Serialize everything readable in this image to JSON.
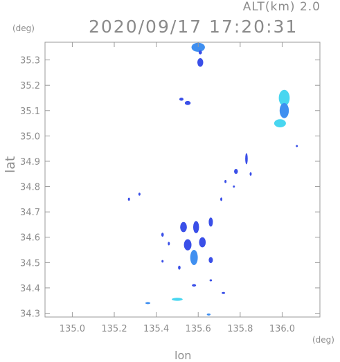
{
  "header": {
    "altitude": "ALT(km)  2.0",
    "timestamp": "2020/09/17  17:20:31"
  },
  "axes": {
    "y_unit": "(deg)",
    "x_unit": "(deg)",
    "xlabel": "lon",
    "ylabel": "lat",
    "x_ticks": [
      "135.0",
      "135.2",
      "135.4",
      "135.6",
      "135.8",
      "136.0"
    ],
    "y_ticks": [
      "35.3",
      "35.2",
      "35.1",
      "35.0",
      "34.9",
      "34.8",
      "34.7",
      "34.6",
      "34.5",
      "34.4",
      "34.3"
    ],
    "xlim": [
      134.87,
      136.18
    ],
    "ylim": [
      34.285,
      35.37
    ]
  },
  "chart_data": {
    "type": "heatmap",
    "xlim": [
      134.87,
      136.18
    ],
    "ylim": [
      34.285,
      35.37
    ],
    "colors": {
      "low": "#3a4fe8",
      "mid": "#3f8ff0",
      "high": "#48d6f0"
    },
    "echoes": [
      {
        "lon": 135.6,
        "lat": 35.35,
        "rx": 0.032,
        "ry": 0.018,
        "level": "mid"
      },
      {
        "lon": 135.61,
        "lat": 35.29,
        "rx": 0.014,
        "ry": 0.017,
        "level": "low"
      },
      {
        "lon": 135.61,
        "lat": 35.33,
        "rx": 0.008,
        "ry": 0.008,
        "level": "low"
      },
      {
        "lon": 135.52,
        "lat": 35.145,
        "rx": 0.01,
        "ry": 0.006,
        "level": "low"
      },
      {
        "lon": 135.55,
        "lat": 35.13,
        "rx": 0.014,
        "ry": 0.008,
        "level": "low"
      },
      {
        "lon": 136.01,
        "lat": 35.15,
        "rx": 0.026,
        "ry": 0.032,
        "level": "high"
      },
      {
        "lon": 136.01,
        "lat": 35.1,
        "rx": 0.022,
        "ry": 0.03,
        "level": "mid"
      },
      {
        "lon": 135.99,
        "lat": 35.05,
        "rx": 0.028,
        "ry": 0.016,
        "level": "high"
      },
      {
        "lon": 135.78,
        "lat": 34.86,
        "rx": 0.009,
        "ry": 0.01,
        "level": "low"
      },
      {
        "lon": 135.83,
        "lat": 34.91,
        "rx": 0.006,
        "ry": 0.022,
        "level": "low"
      },
      {
        "lon": 135.85,
        "lat": 34.85,
        "rx": 0.004,
        "ry": 0.007,
        "level": "low"
      },
      {
        "lon": 135.73,
        "lat": 34.82,
        "rx": 0.004,
        "ry": 0.006,
        "level": "low"
      },
      {
        "lon": 135.27,
        "lat": 34.75,
        "rx": 0.005,
        "ry": 0.006,
        "level": "low"
      },
      {
        "lon": 135.32,
        "lat": 34.77,
        "rx": 0.004,
        "ry": 0.006,
        "level": "low"
      },
      {
        "lon": 135.71,
        "lat": 34.75,
        "rx": 0.005,
        "ry": 0.007,
        "level": "low"
      },
      {
        "lon": 135.53,
        "lat": 34.64,
        "rx": 0.016,
        "ry": 0.02,
        "level": "low"
      },
      {
        "lon": 135.59,
        "lat": 34.64,
        "rx": 0.014,
        "ry": 0.024,
        "level": "low"
      },
      {
        "lon": 135.66,
        "lat": 34.66,
        "rx": 0.01,
        "ry": 0.018,
        "level": "low"
      },
      {
        "lon": 135.55,
        "lat": 34.57,
        "rx": 0.018,
        "ry": 0.022,
        "level": "low"
      },
      {
        "lon": 135.62,
        "lat": 34.58,
        "rx": 0.016,
        "ry": 0.02,
        "level": "low"
      },
      {
        "lon": 135.58,
        "lat": 34.52,
        "rx": 0.018,
        "ry": 0.03,
        "level": "mid"
      },
      {
        "lon": 135.66,
        "lat": 34.51,
        "rx": 0.01,
        "ry": 0.012,
        "level": "low"
      },
      {
        "lon": 135.43,
        "lat": 34.61,
        "rx": 0.006,
        "ry": 0.008,
        "level": "low"
      },
      {
        "lon": 135.46,
        "lat": 34.575,
        "rx": 0.005,
        "ry": 0.007,
        "level": "low"
      },
      {
        "lon": 135.43,
        "lat": 34.505,
        "rx": 0.005,
        "ry": 0.005,
        "level": "low"
      },
      {
        "lon": 135.51,
        "lat": 34.48,
        "rx": 0.006,
        "ry": 0.008,
        "level": "low"
      },
      {
        "lon": 135.58,
        "lat": 34.41,
        "rx": 0.01,
        "ry": 0.005,
        "level": "low"
      },
      {
        "lon": 135.66,
        "lat": 34.43,
        "rx": 0.006,
        "ry": 0.004,
        "level": "low"
      },
      {
        "lon": 135.5,
        "lat": 34.355,
        "rx": 0.026,
        "ry": 0.006,
        "level": "high"
      },
      {
        "lon": 135.36,
        "lat": 34.34,
        "rx": 0.012,
        "ry": 0.004,
        "level": "mid"
      },
      {
        "lon": 135.65,
        "lat": 34.295,
        "rx": 0.009,
        "ry": 0.003,
        "level": "mid"
      },
      {
        "lon": 135.72,
        "lat": 34.38,
        "rx": 0.008,
        "ry": 0.003,
        "level": "low"
      },
      {
        "lon": 135.77,
        "lat": 34.8,
        "rx": 0.003,
        "ry": 0.004,
        "level": "low"
      },
      {
        "lon": 136.07,
        "lat": 34.96,
        "rx": 0.002,
        "ry": 0.002,
        "level": "low"
      }
    ]
  }
}
